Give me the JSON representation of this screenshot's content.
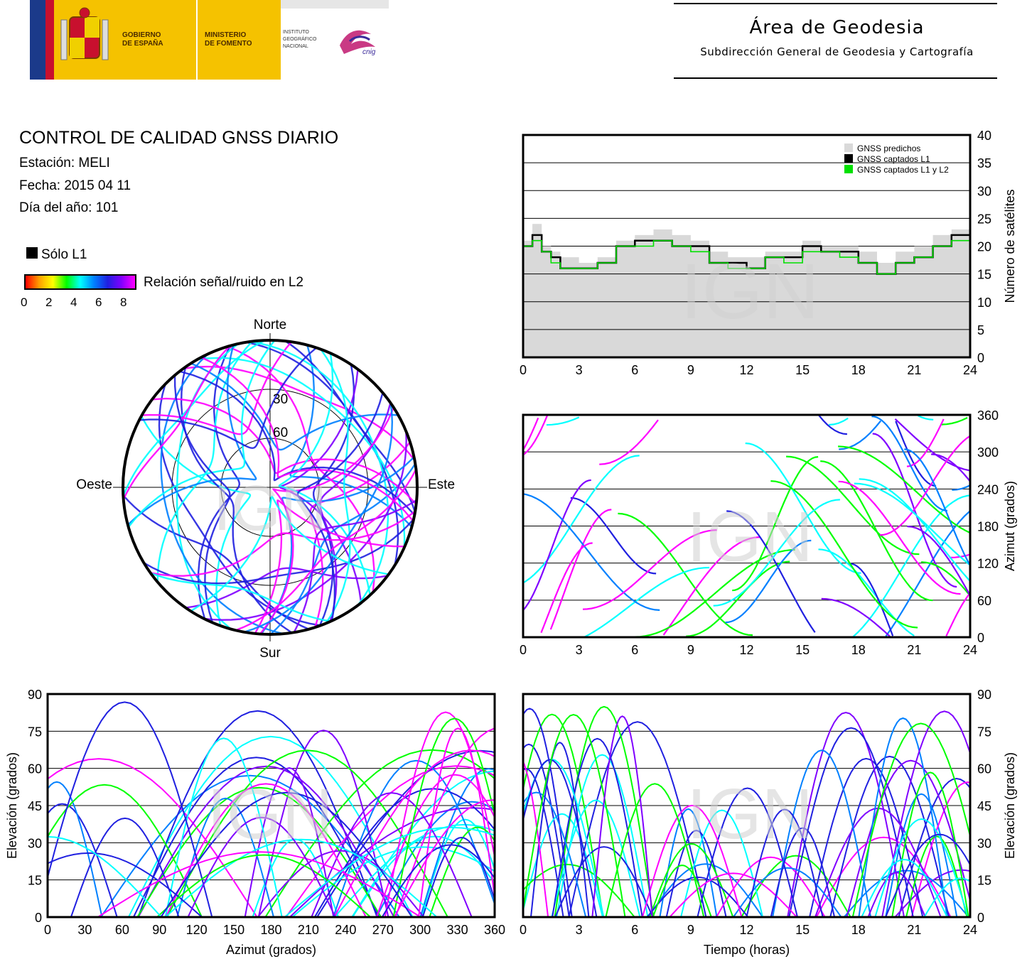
{
  "header": {
    "gov_line1": "GOBIERNO",
    "gov_line2": "DE ESPAÑA",
    "min_line1": "MINISTERIO",
    "min_line2": "DE FOMENTO",
    "ign_line1": "INSTITUTO",
    "ign_line2": "GEOGRÁFICO",
    "ign_line3": "NACIONAL",
    "cnig": "cnig",
    "area_title": "Área de Geodesia",
    "area_subtitle": "Subdirección General de Geodesia y Cartografía"
  },
  "report": {
    "title": "CONTROL DE CALIDAD GNSS DIARIO",
    "station": "Estación: MELI",
    "date": "Fecha: 2015 04 11",
    "doy": "Día del año: 101",
    "legend_l1": "Sólo L1",
    "legend_snr": "Relación señal/ruido en L2",
    "snr_ticks": [
      "0",
      "2",
      "4",
      "6",
      "8"
    ]
  },
  "watermark": "IGN",
  "colors": {
    "predicted": "#d9d9d9",
    "l1": "#000000",
    "l1l2": "#00e000",
    "snr_scale": [
      "#ff0000",
      "#ffa000",
      "#ffff00",
      "#00ff00",
      "#00ffff",
      "#0080ff",
      "#2020e0",
      "#8000ff",
      "#ff00ff"
    ]
  },
  "chart_data": [
    {
      "id": "satellite-count",
      "type": "area",
      "xlabel": "",
      "ylabel": "Número de satélites",
      "xlim": [
        0,
        24
      ],
      "ylim": [
        0,
        40
      ],
      "xticks": [
        0,
        3,
        6,
        9,
        12,
        15,
        18,
        21,
        24
      ],
      "yticks": [
        0,
        5,
        10,
        15,
        20,
        25,
        30,
        35,
        40
      ],
      "grid": "horizontal",
      "legend": "top-right",
      "series": [
        {
          "name": "GNSS predichos",
          "x": [
            0,
            0.5,
            1,
            1.5,
            2,
            3,
            4,
            5,
            6,
            7,
            8,
            9,
            10,
            11,
            12,
            13,
            14,
            15,
            16,
            17,
            18,
            19,
            20,
            21,
            22,
            23,
            24
          ],
          "values": [
            21,
            24,
            20,
            19,
            18,
            17,
            18,
            21,
            22,
            23,
            22,
            21,
            19,
            18,
            18,
            19,
            19,
            21,
            20,
            20,
            19,
            17,
            19,
            20,
            22,
            23,
            23
          ]
        },
        {
          "name": "GNSS captados L1",
          "x": [
            0,
            0.5,
            1,
            1.5,
            2,
            3,
            4,
            5,
            6,
            7,
            8,
            9,
            10,
            11,
            12,
            13,
            14,
            15,
            16,
            17,
            18,
            19,
            20,
            21,
            22,
            23,
            24
          ],
          "values": [
            20,
            22,
            19,
            18,
            16,
            16,
            17,
            20,
            21,
            21,
            20,
            20,
            17,
            17,
            16,
            18,
            18,
            20,
            19,
            19,
            17,
            15,
            17,
            18,
            20,
            22,
            21
          ]
        },
        {
          "name": "GNSS captados L1 y L2",
          "x": [
            0,
            0.5,
            1,
            1.5,
            2,
            3,
            4,
            5,
            6,
            7,
            8,
            9,
            10,
            11,
            12,
            13,
            14,
            15,
            16,
            17,
            18,
            19,
            20,
            21,
            22,
            23,
            24
          ],
          "values": [
            20,
            21,
            19,
            17,
            16,
            16,
            17,
            20,
            20,
            21,
            20,
            19,
            17,
            16,
            16,
            18,
            17,
            19,
            19,
            18,
            17,
            15,
            17,
            18,
            20,
            21,
            21
          ]
        }
      ]
    },
    {
      "id": "skyplot",
      "type": "scatter",
      "title": "",
      "labels": {
        "north": "Norte",
        "south": "Sur",
        "west": "Oeste",
        "east": "Este"
      },
      "elevation_rings": [
        30,
        60
      ],
      "ring_labels": [
        "30",
        "60"
      ]
    },
    {
      "id": "azimuth-time",
      "type": "scatter",
      "xlabel": "",
      "ylabel": "Azimut (grados)",
      "xlim": [
        0,
        24
      ],
      "ylim": [
        0,
        360
      ],
      "xticks": [
        0,
        3,
        6,
        9,
        12,
        15,
        18,
        21,
        24
      ],
      "yticks": [
        0,
        60,
        120,
        180,
        240,
        300,
        360
      ],
      "grid": "horizontal"
    },
    {
      "id": "elevation-azimuth",
      "type": "scatter",
      "xlabel": "Azimut (grados)",
      "ylabel": "Elevación (grados)",
      "xlim": [
        0,
        360
      ],
      "ylim": [
        0,
        90
      ],
      "xticks": [
        0,
        30,
        60,
        90,
        120,
        150,
        180,
        210,
        240,
        270,
        300,
        330,
        360
      ],
      "yticks": [
        0,
        15,
        30,
        45,
        60,
        75,
        90
      ],
      "grid": "horizontal"
    },
    {
      "id": "elevation-time",
      "type": "scatter",
      "xlabel": "Tiempo (horas)",
      "ylabel": "Elevación (grados)",
      "xlim": [
        0,
        24
      ],
      "ylim": [
        0,
        90
      ],
      "xticks": [
        0,
        3,
        6,
        9,
        12,
        15,
        18,
        21,
        24
      ],
      "yticks": [
        0,
        15,
        30,
        45,
        60,
        75,
        90
      ],
      "grid": "horizontal"
    }
  ]
}
